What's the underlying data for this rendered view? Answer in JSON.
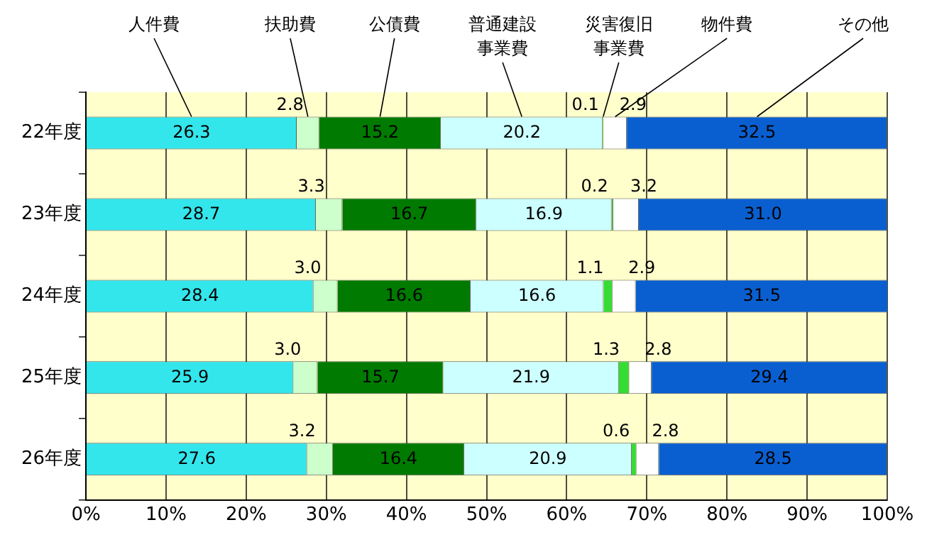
{
  "chart_data": {
    "type": "bar",
    "orientation": "horizontal",
    "stacked": true,
    "categories": [
      "22年度",
      "23年度",
      "24年度",
      "25年度",
      "26年度"
    ],
    "series": [
      {
        "name": "人件費",
        "color": "#33e6ec",
        "values": [
          26.3,
          28.7,
          28.4,
          25.9,
          27.6
        ],
        "value_labels": [
          "26.3",
          "28.7",
          "28.4",
          "25.9",
          "27.6"
        ]
      },
      {
        "name": "扶助費",
        "color": "#ccffcc",
        "values": [
          2.8,
          3.3,
          3.0,
          3.0,
          3.2
        ],
        "value_labels": [
          "2.8",
          "3.3",
          "3.0",
          "3.0",
          "3.2"
        ]
      },
      {
        "name": "公債費",
        "color": "#007a00",
        "values": [
          15.2,
          16.7,
          16.6,
          15.7,
          16.4
        ],
        "value_labels": [
          "15.2",
          "16.7",
          "16.6",
          "15.7",
          "16.4"
        ]
      },
      {
        "name": "普通建設事業費",
        "color": "#ccffff",
        "values": [
          20.2,
          16.9,
          16.6,
          21.9,
          20.9
        ],
        "value_labels": [
          "20.2",
          "16.9",
          "16.6",
          "21.9",
          "20.9"
        ]
      },
      {
        "name": "災害復旧事業費",
        "color": "#33dd33",
        "values": [
          0.1,
          0.2,
          1.1,
          1.3,
          0.6
        ],
        "value_labels": [
          "0.1",
          "0.2",
          "1.1",
          "1.3",
          "0.6"
        ]
      },
      {
        "name": "物件費",
        "color": "#ffffff",
        "values": [
          2.9,
          3.2,
          2.9,
          2.8,
          2.8
        ],
        "value_labels": [
          "2.9",
          "3.2",
          "2.9",
          "2.8",
          "2.8"
        ]
      },
      {
        "name": "その他",
        "color": "#0a5fd0",
        "values": [
          32.5,
          31.0,
          31.5,
          29.4,
          28.5
        ],
        "value_labels": [
          "32.5",
          "31.0",
          "31.5",
          "29.4",
          "28.5"
        ]
      }
    ],
    "xlim": [
      0,
      100
    ],
    "xticks": [
      {
        "value": 0,
        "label": "0%"
      },
      {
        "value": 10,
        "label": "10%"
      },
      {
        "value": 20,
        "label": "20%"
      },
      {
        "value": 30,
        "label": "30%"
      },
      {
        "value": 40,
        "label": "40%"
      },
      {
        "value": 50,
        "label": "50%"
      },
      {
        "value": 60,
        "label": "60%"
      },
      {
        "value": 70,
        "label": "70%"
      },
      {
        "value": 80,
        "label": "80%"
      },
      {
        "value": 90,
        "label": "90%"
      },
      {
        "value": 100,
        "label": "100%"
      }
    ],
    "grid": "x",
    "legend": false
  }
}
